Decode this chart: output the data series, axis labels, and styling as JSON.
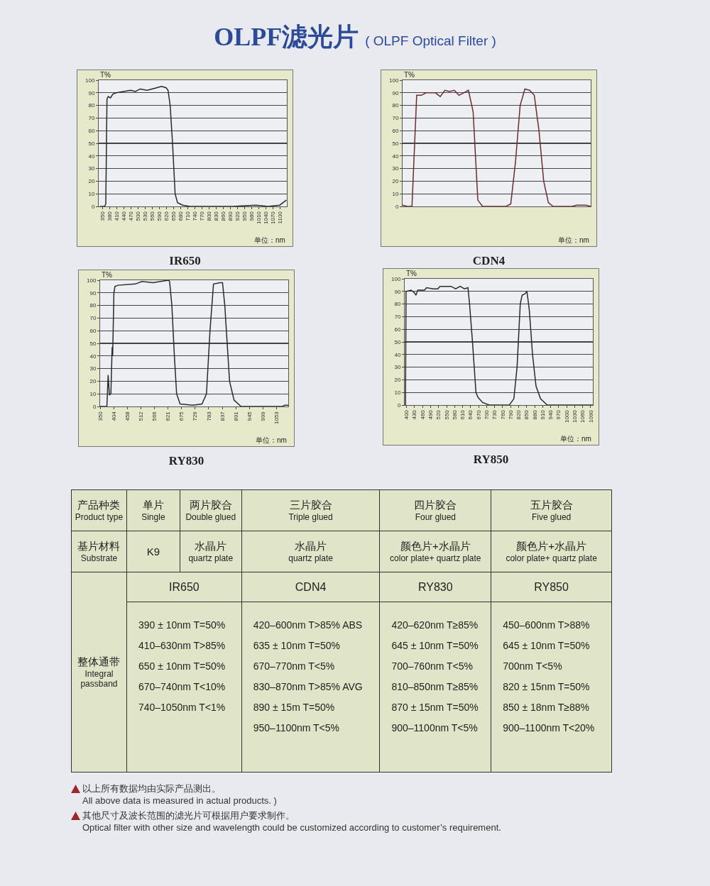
{
  "chart_data": [
    {
      "type": "other",
      "title": "OLPF滤光片 ( OLPF Optical Filter )"
    },
    {
      "type": "line",
      "title": "IR650",
      "xlabel": "单位：nm",
      "ylabel": "T%",
      "color": "#2b2b2b",
      "grid": "y",
      "x": [
        340,
        350,
        360,
        365,
        370,
        375,
        385,
        395,
        410,
        440,
        470,
        490,
        510,
        540,
        560,
        580,
        600,
        620,
        628,
        637,
        647,
        658,
        668,
        690,
        720,
        900,
        1000,
        1050,
        1100,
        1128
      ],
      "values": [
        0,
        0,
        0,
        2,
        85,
        87,
        86,
        89,
        90,
        91,
        92,
        91,
        93,
        92,
        93,
        94,
        95,
        94,
        92,
        80,
        50,
        10,
        3,
        1,
        0,
        0,
        1,
        0,
        1,
        5
      ],
      "xlim": [
        335,
        1130
      ],
      "xticks": [
        350,
        380,
        410,
        440,
        470,
        500,
        530,
        560,
        590,
        620,
        650,
        680,
        710,
        740,
        770,
        800,
        830,
        860,
        890,
        920,
        950,
        980,
        1010,
        1040,
        1070,
        1100
      ],
      "ylim": [
        0,
        100
      ],
      "yticks": [
        0,
        10,
        20,
        30,
        40,
        50,
        60,
        70,
        80,
        90,
        100
      ]
    },
    {
      "type": "line",
      "title": "CDN4",
      "xlabel": "单位：nm",
      "ylabel": "T%",
      "color": "#6b2e34",
      "grid": "y",
      "tick_labels": "y",
      "categories": [
        null,
        null,
        null,
        null,
        null,
        null,
        null,
        null,
        null,
        null,
        null,
        null,
        null,
        null,
        null,
        null,
        null,
        null,
        null,
        null,
        null,
        null,
        null,
        null,
        null,
        null,
        null,
        null,
        null,
        null,
        null,
        null,
        null,
        null,
        null,
        null,
        null,
        null,
        null,
        null,
        null
      ],
      "values": [
        1,
        0,
        0,
        88,
        88,
        90,
        90,
        90,
        87,
        92,
        91,
        92,
        88,
        90,
        92,
        75,
        5,
        0,
        0,
        0,
        0,
        0,
        0,
        2,
        35,
        80,
        93,
        92,
        88,
        60,
        20,
        3,
        0,
        0,
        0,
        0,
        0,
        1,
        1,
        1,
        0
      ],
      "ylim": [
        0,
        100
      ],
      "yticks": [
        0,
        10,
        20,
        30,
        40,
        50,
        60,
        70,
        80,
        90,
        100
      ]
    },
    {
      "type": "line",
      "title": "RY830",
      "xlabel": "单位：nm",
      "ylabel": "T%",
      "color": "#2b2b2b",
      "grid": "y",
      "x": [
        350,
        377,
        382,
        387,
        393,
        398,
        400,
        405,
        409,
        421,
        490,
        517,
        560,
        623,
        627,
        636,
        646,
        655,
        669,
        719,
        756,
        774,
        788,
        802,
        829,
        838,
        847,
        866,
        884,
        912,
        1077,
        1086,
        1100
      ],
      "values": [
        0,
        0,
        25,
        9,
        10,
        47,
        40,
        90,
        95,
        96,
        97,
        99,
        98,
        100,
        99,
        80,
        40,
        10,
        2,
        1,
        2,
        10,
        60,
        97,
        98,
        98,
        80,
        20,
        5,
        0,
        0,
        1,
        1
      ],
      "xlim": [
        350,
        1100
      ],
      "xticks": [
        350,
        404,
        458,
        512,
        566,
        621,
        675,
        729,
        783,
        837,
        891,
        945,
        999,
        1053
      ],
      "ylim": [
        0,
        100
      ],
      "yticks": [
        0,
        10,
        20,
        30,
        40,
        50,
        60,
        70,
        80,
        90,
        100
      ]
    },
    {
      "type": "line",
      "title": "RY850",
      "xlabel": "单位：nm",
      "ylabel": "T%",
      "color": "#2b2b2b",
      "grid": "y",
      "x": [
        396,
        398,
        417,
        429,
        435,
        442,
        467,
        475,
        500,
        517,
        525,
        542,
        567,
        584,
        601,
        617,
        630,
        636,
        647,
        660,
        668,
        685,
        710,
        785,
        802,
        814,
        826,
        833,
        843,
        851,
        860,
        872,
        885,
        902,
        927,
        1098
      ],
      "values": [
        0,
        90,
        91,
        89,
        87,
        91,
        91,
        93,
        92,
        92,
        94,
        94,
        94,
        92,
        94,
        92,
        93,
        80,
        50,
        10,
        6,
        2,
        0,
        0,
        5,
        30,
        80,
        87,
        88,
        90,
        75,
        40,
        15,
        5,
        0,
        0
      ],
      "xlim": [
        393,
        1098
      ],
      "xticks": [
        400,
        430,
        460,
        490,
        520,
        550,
        580,
        610,
        640,
        670,
        700,
        730,
        760,
        790,
        820,
        850,
        880,
        910,
        940,
        970,
        1000,
        1030,
        1060,
        1090
      ],
      "ylim": [
        0,
        100
      ],
      "yticks": [
        0,
        10,
        20,
        30,
        40,
        50,
        60,
        70,
        80,
        90,
        100
      ]
    },
    {
      "type": "other",
      "annotations": [
        "产品种类\nProduct type",
        "单片\nSingle",
        "两片胶合\nDouble glued",
        "三片胶合\nTriple glued",
        "四片胶合\nFour glued",
        "五片胶合\nFive glued",
        "基片材料\nSubstrate",
        "K9",
        "水晶片\nquartz plate",
        "水晶片\nquartz plate",
        "颜色片+水晶片\ncolor plate+ quartz plate",
        "颜色片+水晶片\ncolor plate+ quartz plate",
        "整体通带\nIntegral\npassband",
        "IR650",
        "CDN4",
        "RY830",
        "RY850",
        "390 ± 10nm T=50%\n410–630nm T>85%\n650 ± 10nm T=50%\n670–740nm T<10%\n740–1050nm T<1%",
        "420–600nm T>85% ABS\n635 ± 10nm T=50%\n670–770nm T<5%\n830–870nm T>85% AVG\n890 ± 15m T=50%\n950–1100nm T<5%",
        "420–620nm T≥85%\n645 ± 10nm T=50%\n700–760nm T<5%\n810–850nm T≥85%\n870 ± 15nm T=50%\n900–1100nm T<5%",
        "450–600nm T>88%\n645 ± 10nm T=50%\n700nm T<5%\n820 ± 15nm T=50%\n850 ± 18nm T≥88%\n900–1100nm T<20%",
        "以上所有数据均由实际产品测出。\nAll above data is measured in actual products. )",
        "其他尺寸及波长范围的滤光片可根据用户要求制作。\nOptical filter with other size and wavelength could be customized according to customer’s requirement."
      ]
    }
  ]
}
